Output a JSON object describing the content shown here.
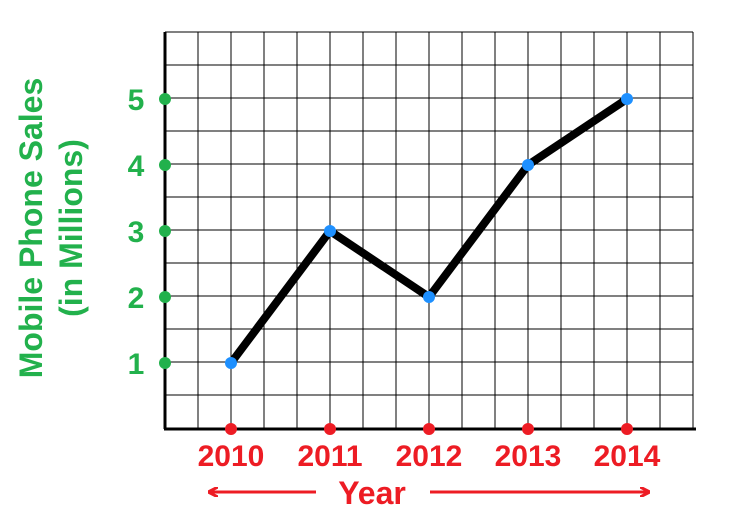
{
  "chart_data": {
    "type": "line",
    "xlabel": "Year",
    "ylabel_line1": "Mobile Phone Sales",
    "ylabel_line2": "(in Millions)",
    "categories": [
      "2010",
      "2011",
      "2012",
      "2013",
      "2014"
    ],
    "values": [
      1,
      3,
      2,
      4,
      5
    ],
    "yticks": [
      "1",
      "2",
      "3",
      "4",
      "5"
    ],
    "ylim": [
      0,
      6
    ],
    "grid": true,
    "colors": {
      "line": "#000000",
      "points": "#1e90ff",
      "y_axis_text": "#22b14c",
      "x_axis_text": "#ed1c24",
      "grid": "#000000"
    }
  }
}
